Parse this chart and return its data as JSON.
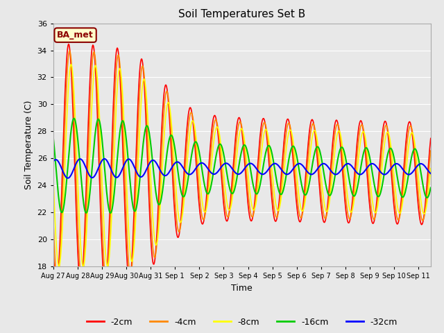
{
  "title": "Soil Temperatures Set B",
  "xlabel": "Time",
  "ylabel": "Soil Temperature (C)",
  "ylim": [
    18,
    36
  ],
  "yticks": [
    18,
    20,
    22,
    24,
    26,
    28,
    30,
    32,
    34,
    36
  ],
  "bg_color": "#e8e8e8",
  "grid_color": "#ffffff",
  "legend_label": "BA_met",
  "legend_label_color": "#8B0000",
  "legend_box_color": "#ffffcc",
  "legend_box_edge": "#8B0000",
  "series": [
    {
      "label": "-2cm",
      "color": "#ff0000",
      "lw": 1.2
    },
    {
      "label": "-4cm",
      "color": "#ff8800",
      "lw": 1.2
    },
    {
      "label": "-8cm",
      "color": "#ffff00",
      "lw": 1.2
    },
    {
      "label": "-16cm",
      "color": "#00cc00",
      "lw": 1.5
    },
    {
      "label": "-32cm",
      "color": "#0000ff",
      "lw": 1.5
    }
  ],
  "n_days": 15.5,
  "date_labels": [
    "Aug 27",
    "Aug 28",
    "Aug 29",
    "Aug 30",
    "Aug 31",
    "Sep 1",
    "Sep 2",
    "Sep 3",
    "Sep 4",
    "Sep 5",
    "Sep 6",
    "Sep 7",
    "Sep 8",
    "Sep 9",
    "Sep 10",
    "Sep 11"
  ]
}
